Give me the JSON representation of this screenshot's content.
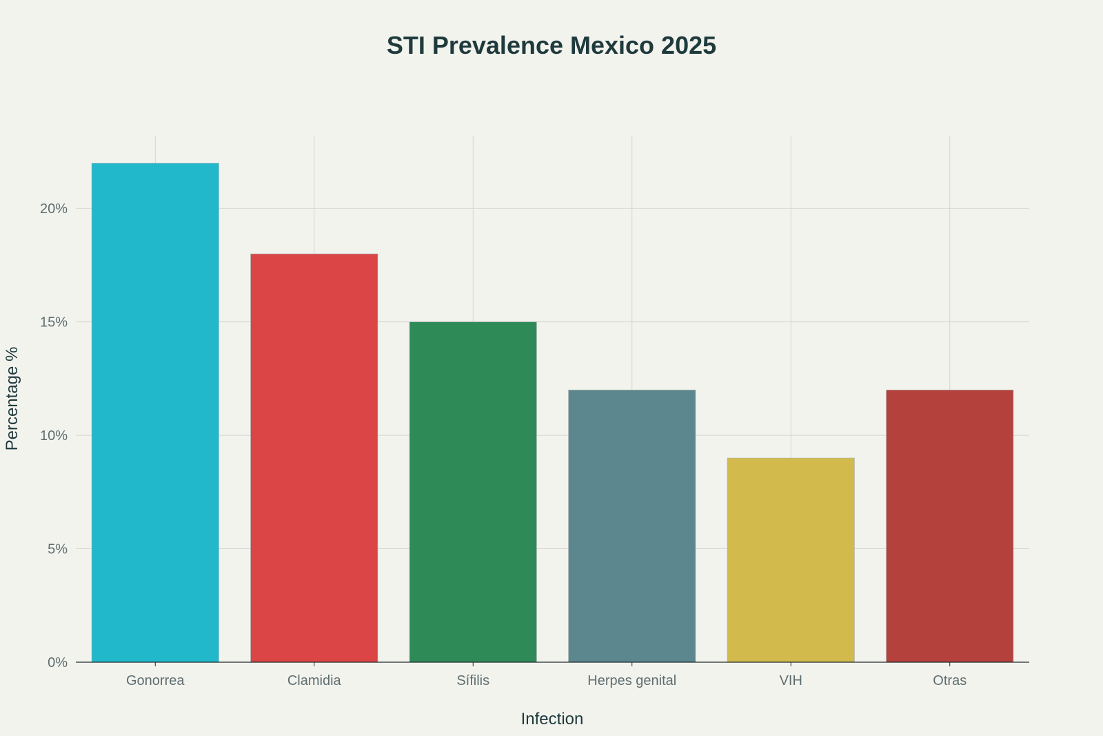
{
  "chart_data": {
    "type": "bar",
    "title": "STI Prevalence Mexico 2025",
    "xlabel": "Infection",
    "ylabel": "Percentage %",
    "categories": [
      "Gonorrea",
      "Clamidia",
      "Sífilis",
      "Herpes genital",
      "VIH",
      "Otras"
    ],
    "values": [
      22,
      18,
      15,
      12,
      9,
      12
    ],
    "colors": [
      "#21B8CC",
      "#DB4545",
      "#2E8B57",
      "#5D878F",
      "#D2BA4C",
      "#B4413C"
    ],
    "ylim": [
      0,
      23.2
    ],
    "yticks": [
      0,
      5,
      10,
      15,
      20
    ],
    "ytick_labels": [
      "0%",
      "5%",
      "10%",
      "15%",
      "20%"
    ],
    "grid": true,
    "legend": "none"
  }
}
